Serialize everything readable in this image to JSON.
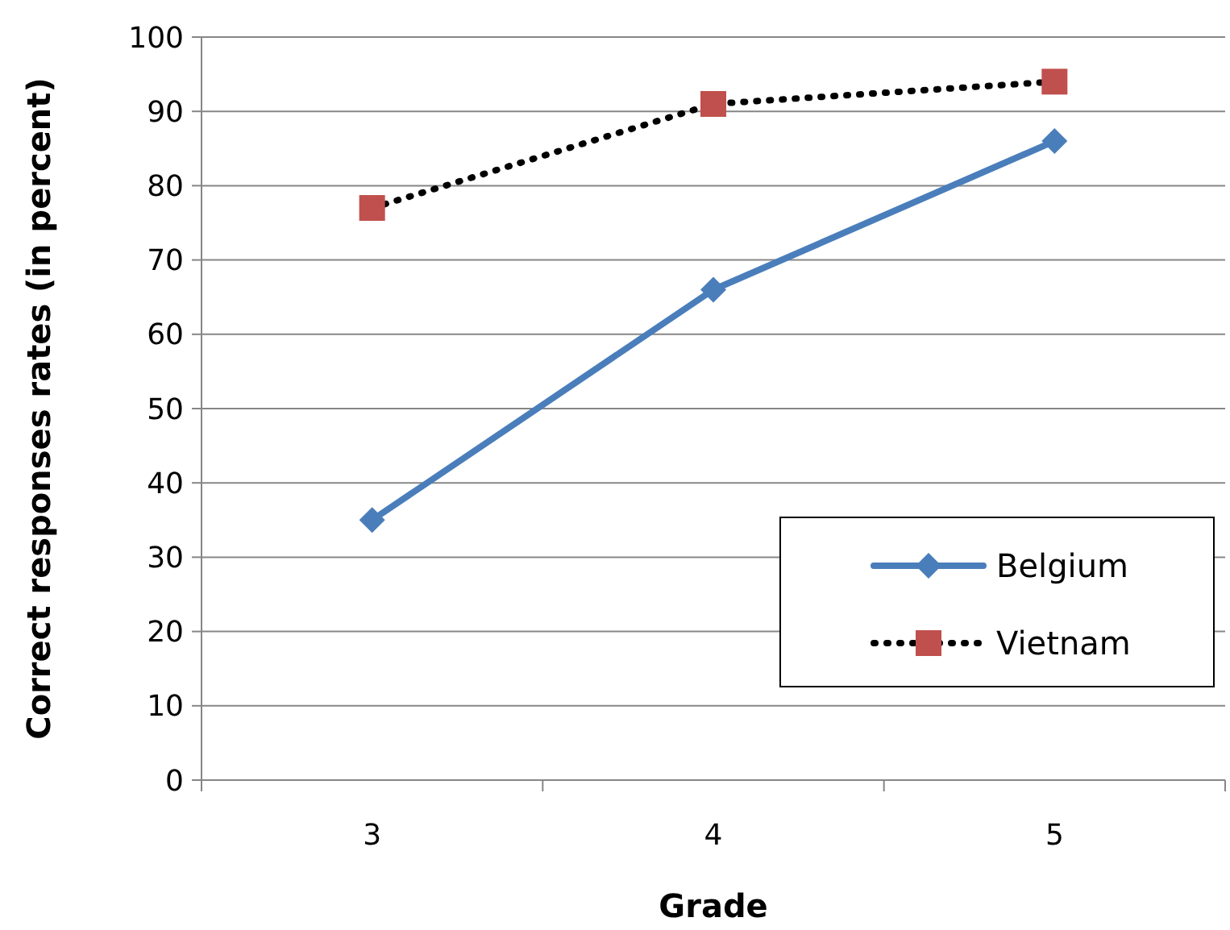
{
  "chart_data": {
    "type": "line",
    "xlabel": "Grade",
    "ylabel": "Correct responses rates (in percent)",
    "categories": [
      "3",
      "4",
      "5"
    ],
    "series": [
      {
        "name": "Belgium",
        "color": "#4a7ebb",
        "values": [
          35,
          66,
          86
        ],
        "marker": "diamond",
        "line_style": "solid"
      },
      {
        "name": "Vietnam",
        "color": "#000000",
        "colors": [
          "#c0504d",
          "#c0504d",
          "#c0504d"
        ],
        "values": [
          77,
          91,
          94
        ],
        "marker": "square",
        "line_style": "dotted"
      }
    ],
    "ylim": [
      0,
      100
    ],
    "yticks": [
      0,
      10,
      20,
      30,
      40,
      50,
      60,
      70,
      80,
      90,
      100
    ],
    "grid": "y",
    "legend": "bottom right"
  }
}
